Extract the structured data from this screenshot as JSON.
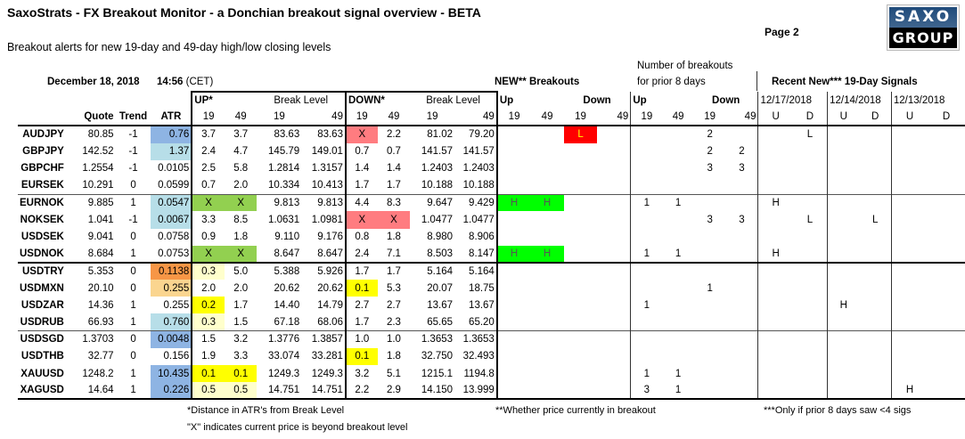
{
  "header": {
    "title": "SaxoStrats - FX Breakout Monitor - a Donchian breakout signal overview - BETA",
    "subtitle": "Breakout alerts for new 19-day and 49-day high/low closing levels",
    "page": "Page 2",
    "logo_top": "SAXO",
    "logo_bottom": "GROUP",
    "date": "December 18, 2018",
    "time": "14:56",
    "tz": "(CET)"
  },
  "columns": {
    "quote": "Quote",
    "trend": "Trend",
    "atr": "ATR",
    "up": "UP*",
    "down": "DOWN*",
    "break_level": "Break Level",
    "new_breakouts": "NEW** Breakouts",
    "prior_line1": "Number of breakouts",
    "prior_line2": "for prior 8 days",
    "recent": "Recent New*** 19-Day Signals",
    "up_short": "Up",
    "down_short": "Down",
    "d19": "19",
    "d49": "49",
    "dates": [
      "12/17/2018",
      "12/14/2018",
      "12/13/2018"
    ],
    "u": "U",
    "d": "D"
  },
  "colors": {
    "atr_dark_blue": "#8eb4e3",
    "atr_light_blue": "#b7dee8",
    "atr_orange": "#f79646",
    "atr_light_orange": "#fad58f",
    "up_x_green": "#92d050",
    "down_x_red": "#ff7c80",
    "near_yellow": "#ffff00",
    "pale_yellow": "#ffffcc",
    "new_green": "#00ff00",
    "new_red": "#ff0000",
    "new_red_text": "#ffff00"
  },
  "rows": [
    {
      "pair": "AUDJPY",
      "quote": "80.85",
      "trend": "-1",
      "atr": "0.76",
      "atr_bg": "#8eb4e3",
      "up19": "3.7",
      "up49": "3.7",
      "ubl19": "83.63",
      "ubl49": "83.63",
      "dn19": "X",
      "dn19_bg": "#ff7c80",
      "dn49": "2.2",
      "dbl19": "81.02",
      "dbl49": "79.20",
      "nu19": "",
      "nu49": "",
      "nd19": "L",
      "nd19_bg": "#ff0000",
      "nd49": "",
      "pu19": "",
      "pu49": "",
      "pd19": "2",
      "pd49": "",
      "s1u": "",
      "s1d": "L",
      "s2u": "",
      "s2d": "",
      "s3u": "",
      "s3d": ""
    },
    {
      "pair": "GBPJPY",
      "quote": "142.52",
      "trend": "-1",
      "atr": "1.37",
      "atr_bg": "#b7dee8",
      "up19": "2.4",
      "up49": "4.7",
      "ubl19": "145.79",
      "ubl49": "149.01",
      "dn19": "0.7",
      "dn49": "0.7",
      "dbl19": "141.57",
      "dbl49": "141.57",
      "nu19": "",
      "nu49": "",
      "nd19": "",
      "nd49": "",
      "pu19": "",
      "pu49": "",
      "pd19": "2",
      "pd49": "2",
      "s1u": "",
      "s1d": "",
      "s2u": "",
      "s2d": "",
      "s3u": "",
      "s3d": ""
    },
    {
      "pair": "GBPCHF",
      "quote": "1.2554",
      "trend": "-1",
      "atr": "0.0105",
      "up19": "2.5",
      "up49": "5.8",
      "ubl19": "1.2814",
      "ubl49": "1.3157",
      "dn19": "1.4",
      "dn49": "1.4",
      "dbl19": "1.2403",
      "dbl49": "1.2403",
      "nu19": "",
      "nu49": "",
      "nd19": "",
      "nd49": "",
      "pu19": "",
      "pu49": "",
      "pd19": "3",
      "pd49": "3",
      "s1u": "",
      "s1d": "",
      "s2u": "",
      "s2d": "",
      "s3u": "",
      "s3d": ""
    },
    {
      "pair": "EURSEK",
      "quote": "10.291",
      "trend": "0",
      "atr": "0.0599",
      "up19": "0.7",
      "up49": "2.0",
      "ubl19": "10.334",
      "ubl49": "10.413",
      "dn19": "1.7",
      "dn49": "1.7",
      "dbl19": "10.188",
      "dbl49": "10.188",
      "nu19": "",
      "nu49": "",
      "nd19": "",
      "nd49": "",
      "pu19": "",
      "pu49": "",
      "pd19": "",
      "pd49": "",
      "s1u": "",
      "s1d": "",
      "s2u": "",
      "s2d": "",
      "s3u": "",
      "s3d": ""
    },
    {
      "pair": "EURNOK",
      "quote": "9.885",
      "trend": "1",
      "atr": "0.0547",
      "atr_bg": "#b7dee8",
      "up19": "X",
      "up19_bg": "#92d050",
      "up49": "X",
      "up49_bg": "#92d050",
      "ubl19": "9.813",
      "ubl49": "9.813",
      "dn19": "4.4",
      "dn49": "8.3",
      "dbl19": "9.647",
      "dbl49": "9.429",
      "nu19": "H",
      "nu19_bg": "#00ff00",
      "nu49": "H",
      "nu49_bg": "#00ff00",
      "nd19": "",
      "nd49": "",
      "pu19": "1",
      "pu49": "1",
      "pd19": "",
      "pd49": "",
      "s1u": "H",
      "s1d": "",
      "s2u": "",
      "s2d": "",
      "s3u": "",
      "s3d": ""
    },
    {
      "pair": "NOKSEK",
      "quote": "1.041",
      "trend": "-1",
      "atr": "0.0067",
      "atr_bg": "#b7dee8",
      "up19": "3.3",
      "up49": "8.5",
      "ubl19": "1.0631",
      "ubl49": "1.0981",
      "dn19": "X",
      "dn19_bg": "#ff7c80",
      "dn49": "X",
      "dn49_bg": "#ff7c80",
      "dbl19": "1.0477",
      "dbl49": "1.0477",
      "nu19": "",
      "nu49": "",
      "nd19": "",
      "nd49": "",
      "pu19": "",
      "pu49": "",
      "pd19": "3",
      "pd49": "3",
      "s1u": "",
      "s1d": "L",
      "s2u": "",
      "s2d": "L",
      "s3u": "",
      "s3d": ""
    },
    {
      "pair": "USDSEK",
      "quote": "9.041",
      "trend": "0",
      "atr": "0.0758",
      "up19": "0.9",
      "up49": "1.8",
      "ubl19": "9.110",
      "ubl49": "9.176",
      "dn19": "0.8",
      "dn49": "1.8",
      "dbl19": "8.980",
      "dbl49": "8.906",
      "nu19": "",
      "nu49": "",
      "nd19": "",
      "nd49": "",
      "pu19": "",
      "pu49": "",
      "pd19": "",
      "pd49": "",
      "s1u": "",
      "s1d": "",
      "s2u": "",
      "s2d": "",
      "s3u": "",
      "s3d": ""
    },
    {
      "pair": "USDNOK",
      "quote": "8.684",
      "trend": "1",
      "atr": "0.0753",
      "up19": "X",
      "up19_bg": "#92d050",
      "up49": "X",
      "up49_bg": "#92d050",
      "ubl19": "8.647",
      "ubl49": "8.647",
      "dn19": "2.4",
      "dn49": "7.1",
      "dbl19": "8.503",
      "dbl49": "8.147",
      "nu19": "H",
      "nu19_bg": "#00ff00",
      "nu49": "H",
      "nu49_bg": "#00ff00",
      "nd19": "",
      "nd49": "",
      "pu19": "1",
      "pu49": "1",
      "pd19": "",
      "pd49": "",
      "s1u": "H",
      "s1d": "",
      "s2u": "",
      "s2d": "",
      "s3u": "",
      "s3d": ""
    },
    {
      "pair": "USDTRY",
      "quote": "5.353",
      "trend": "0",
      "atr": "0.1138",
      "atr_bg": "#f79646",
      "up19": "0.3",
      "up19_bg": "#ffffcc",
      "up49": "5.0",
      "ubl19": "5.388",
      "ubl49": "5.926",
      "dn19": "1.7",
      "dn49": "1.7",
      "dbl19": "5.164",
      "dbl49": "5.164",
      "nu19": "",
      "nu49": "",
      "nd19": "",
      "nd49": "",
      "pu19": "",
      "pu49": "",
      "pd19": "",
      "pd49": "",
      "s1u": "",
      "s1d": "",
      "s2u": "",
      "s2d": "",
      "s3u": "",
      "s3d": ""
    },
    {
      "pair": "USDMXN",
      "quote": "20.10",
      "trend": "0",
      "atr": "0.255",
      "atr_bg": "#fad58f",
      "up19": "2.0",
      "up49": "2.0",
      "ubl19": "20.62",
      "ubl49": "20.62",
      "dn19": "0.1",
      "dn19_bg": "#ffff00",
      "dn49": "5.3",
      "dbl19": "20.07",
      "dbl49": "18.75",
      "nu19": "",
      "nu49": "",
      "nd19": "",
      "nd49": "",
      "pu19": "",
      "pu49": "",
      "pd19": "1",
      "pd49": "",
      "s1u": "",
      "s1d": "",
      "s2u": "",
      "s2d": "",
      "s3u": "",
      "s3d": ""
    },
    {
      "pair": "USDZAR",
      "quote": "14.36",
      "trend": "1",
      "atr": "0.255",
      "up19": "0.2",
      "up19_bg": "#ffff00",
      "up49": "1.7",
      "ubl19": "14.40",
      "ubl49": "14.79",
      "dn19": "2.7",
      "dn49": "2.7",
      "dbl19": "13.67",
      "dbl49": "13.67",
      "nu19": "",
      "nu49": "",
      "nd19": "",
      "nd49": "",
      "pu19": "1",
      "pu49": "",
      "pd19": "",
      "pd49": "",
      "s1u": "",
      "s1d": "",
      "s2u": "H",
      "s2d": "",
      "s3u": "",
      "s3d": ""
    },
    {
      "pair": "USDRUB",
      "quote": "66.93",
      "trend": "1",
      "atr": "0.760",
      "atr_bg": "#b7dee8",
      "up19": "0.3",
      "up19_bg": "#ffffcc",
      "up49": "1.5",
      "ubl19": "67.18",
      "ubl49": "68.06",
      "dn19": "1.7",
      "dn49": "2.3",
      "dbl19": "65.65",
      "dbl49": "65.20",
      "nu19": "",
      "nu49": "",
      "nd19": "",
      "nd49": "",
      "pu19": "",
      "pu49": "",
      "pd19": "",
      "pd49": "",
      "s1u": "",
      "s1d": "",
      "s2u": "",
      "s2d": "",
      "s3u": "",
      "s3d": ""
    },
    {
      "pair": "USDSGD",
      "quote": "1.3703",
      "trend": "0",
      "atr": "0.0048",
      "atr_bg": "#8eb4e3",
      "up19": "1.5",
      "up49": "3.2",
      "ubl19": "1.3776",
      "ubl49": "1.3857",
      "dn19": "1.0",
      "dn49": "1.0",
      "dbl19": "1.3653",
      "dbl49": "1.3653",
      "nu19": "",
      "nu49": "",
      "nd19": "",
      "nd49": "",
      "pu19": "",
      "pu49": "",
      "pd19": "",
      "pd49": "",
      "s1u": "",
      "s1d": "",
      "s2u": "",
      "s2d": "",
      "s3u": "",
      "s3d": ""
    },
    {
      "pair": "USDTHB",
      "quote": "32.77",
      "trend": "0",
      "atr": "0.156",
      "up19": "1.9",
      "up49": "3.3",
      "ubl19": "33.074",
      "ubl49": "33.281",
      "dn19": "0.1",
      "dn19_bg": "#ffff00",
      "dn49": "1.8",
      "dbl19": "32.750",
      "dbl49": "32.493",
      "nu19": "",
      "nu49": "",
      "nd19": "",
      "nd49": "",
      "pu19": "",
      "pu49": "",
      "pd19": "",
      "pd49": "",
      "s1u": "",
      "s1d": "",
      "s2u": "",
      "s2d": "",
      "s3u": "",
      "s3d": ""
    },
    {
      "pair": "XAUUSD",
      "quote": "1248.2",
      "trend": "1",
      "atr": "10.435",
      "atr_bg": "#8eb4e3",
      "up19": "0.1",
      "up19_bg": "#ffff00",
      "up49": "0.1",
      "up49_bg": "#ffff00",
      "ubl19": "1249.3",
      "ubl49": "1249.3",
      "dn19": "3.2",
      "dn49": "5.1",
      "dbl19": "1215.1",
      "dbl49": "1194.8",
      "nu19": "",
      "nu49": "",
      "nd19": "",
      "nd49": "",
      "pu19": "1",
      "pu49": "1",
      "pd19": "",
      "pd49": "",
      "s1u": "",
      "s1d": "",
      "s2u": "",
      "s2d": "",
      "s3u": "",
      "s3d": ""
    },
    {
      "pair": "XAGUSD",
      "quote": "14.64",
      "trend": "1",
      "atr": "0.226",
      "atr_bg": "#8eb4e3",
      "up19": "0.5",
      "up19_bg": "#ffffcc",
      "up49": "0.5",
      "up49_bg": "#ffffcc",
      "ubl19": "14.751",
      "ubl49": "14.751",
      "dn19": "2.2",
      "dn49": "2.9",
      "dbl19": "14.150",
      "dbl49": "13.999",
      "nu19": "",
      "nu49": "",
      "nd19": "",
      "nd49": "",
      "pu19": "3",
      "pu49": "1",
      "pd19": "",
      "pd49": "",
      "s1u": "",
      "s1d": "",
      "s2u": "",
      "s2d": "",
      "s3u": "H",
      "s3d": ""
    }
  ],
  "footnotes": {
    "distance": "*Distance in ATR's from Break Level",
    "x_meaning": "\"X\" indicates current price is beyond breakout level",
    "whether": "**Whether price currently in breakout",
    "only_if": "***Only if prior 8 days saw <4 sigs"
  }
}
